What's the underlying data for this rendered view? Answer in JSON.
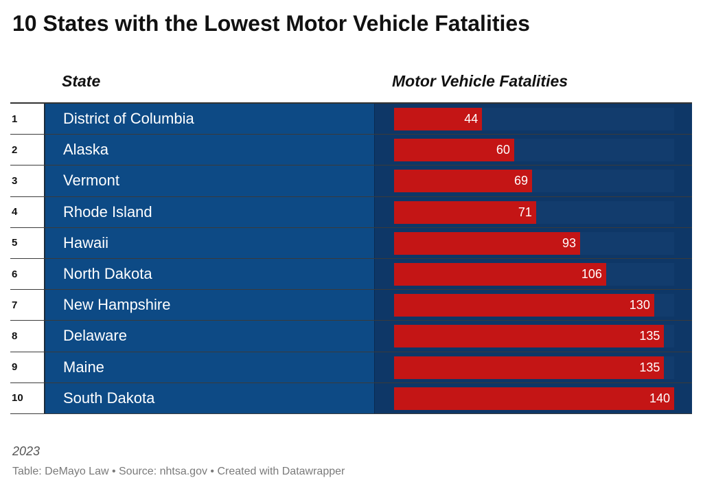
{
  "title": "10 States with the Lowest Motor Vehicle Fatalities",
  "columns": {
    "state": "State",
    "value": "Motor Vehicle Fatalities"
  },
  "year_note": "2023",
  "footer": "Table: DeMayo Law • Source: nhtsa.gov • Created with Datawrapper",
  "colors": {
    "state_bg": "#0d4a85",
    "bar_bg": "#0e3767",
    "bar": "#c41515"
  },
  "chart_data": {
    "type": "table",
    "title": "10 States with the Lowest Motor Vehicle Fatalities",
    "columns": [
      "State",
      "Motor Vehicle Fatalities"
    ],
    "bar_max": 140,
    "rows": [
      {
        "rank": "1",
        "state": "District of Columbia",
        "value": 44
      },
      {
        "rank": "2",
        "state": "Alaska",
        "value": 60
      },
      {
        "rank": "3",
        "state": "Vermont",
        "value": 69
      },
      {
        "rank": "4",
        "state": "Rhode Island",
        "value": 71
      },
      {
        "rank": "5",
        "state": "Hawaii",
        "value": 93
      },
      {
        "rank": "6",
        "state": "North Dakota",
        "value": 106
      },
      {
        "rank": "7",
        "state": "New Hampshire",
        "value": 130
      },
      {
        "rank": "8",
        "state": "Delaware",
        "value": 135
      },
      {
        "rank": "9",
        "state": "Maine",
        "value": 135
      },
      {
        "rank": "10",
        "state": "South Dakota",
        "value": 140
      }
    ]
  }
}
